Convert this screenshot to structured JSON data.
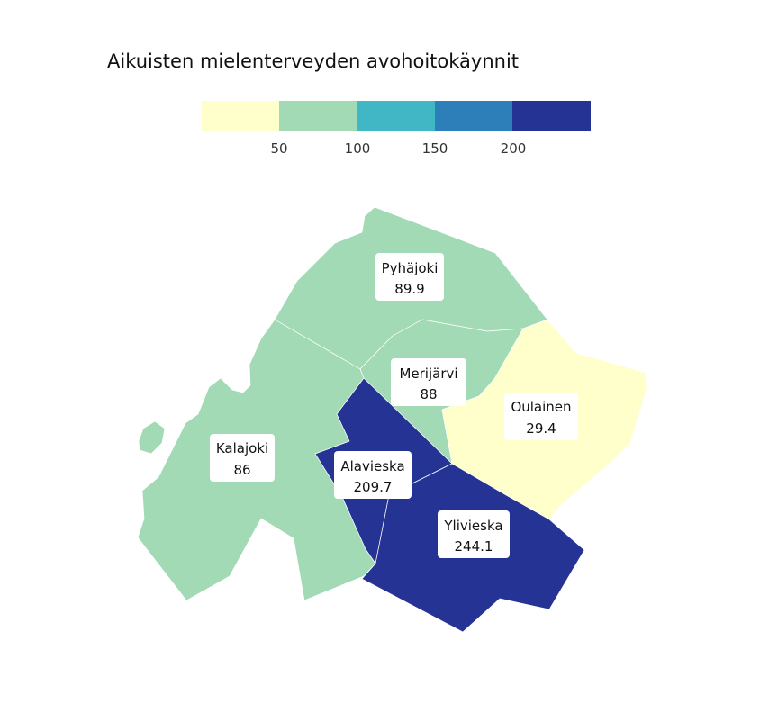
{
  "title": "Aikuisten mielenterveyden avohoitokäynnit",
  "legend": {
    "bins": [
      {
        "color": "#ffffcc"
      },
      {
        "color": "#a1dab4"
      },
      {
        "color": "#41b6c4"
      },
      {
        "color": "#2c7fb8"
      },
      {
        "color": "#253494"
      }
    ],
    "ticks": [
      "50",
      "100",
      "150",
      "200"
    ]
  },
  "regions": [
    {
      "name": "Pyhäjoki",
      "value": "89.9",
      "color": "#a1dab4"
    },
    {
      "name": "Merijärvi",
      "value": "88",
      "color": "#a1dab4"
    },
    {
      "name": "Oulainen",
      "value": "29.4",
      "color": "#ffffcc"
    },
    {
      "name": "Kalajoki",
      "value": "86",
      "color": "#a1dab4"
    },
    {
      "name": "Alavieska",
      "value": "209.7",
      "color": "#253494"
    },
    {
      "name": "Ylivieska",
      "value": "244.1",
      "color": "#253494"
    }
  ]
}
